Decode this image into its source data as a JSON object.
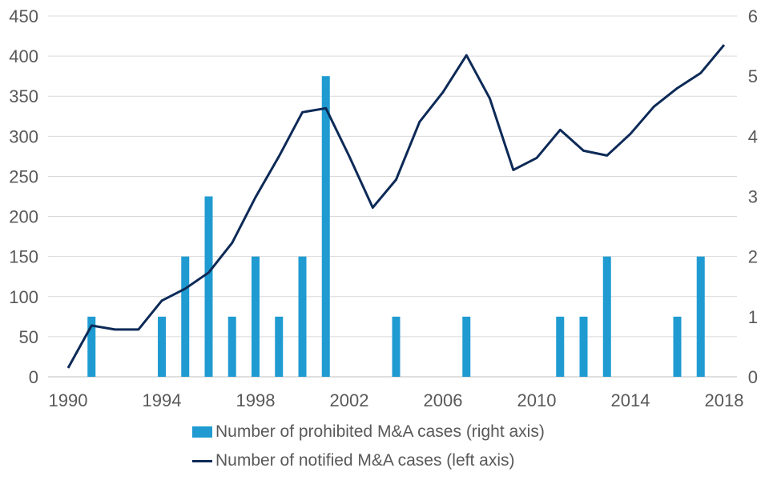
{
  "chart_data": {
    "type": "bar+line",
    "title": "",
    "years": [
      1990,
      1991,
      1992,
      1993,
      1994,
      1995,
      1996,
      1997,
      1998,
      1999,
      2000,
      2001,
      2002,
      2003,
      2004,
      2005,
      2006,
      2007,
      2008,
      2009,
      2010,
      2011,
      2012,
      2013,
      2014,
      2015,
      2016,
      2017,
      2018
    ],
    "x_tick_labels": [
      "1990",
      "1994",
      "1998",
      "2002",
      "2006",
      "2010",
      "2014",
      "2018"
    ],
    "left_axis": {
      "ticks": [
        "0",
        "50",
        "100",
        "150",
        "200",
        "250",
        "300",
        "350",
        "400",
        "450"
      ],
      "ylim": [
        0,
        450
      ]
    },
    "right_axis": {
      "ticks": [
        "0",
        "1",
        "2",
        "3",
        "4",
        "5",
        "6"
      ],
      "ylim": [
        0,
        6
      ]
    },
    "series": [
      {
        "name": "Number of prohibited M&A cases (right axis)",
        "type": "bar",
        "axis": "right",
        "color": "#1f9bd1",
        "values": [
          0,
          1,
          0,
          0,
          1,
          2,
          3,
          1,
          2,
          1,
          2,
          5,
          0,
          0,
          1,
          0,
          0,
          1,
          0,
          0,
          0,
          1,
          1,
          2,
          0,
          0,
          1,
          2,
          0
        ]
      },
      {
        "name": "Number of notified M&A cases (left axis)",
        "type": "line",
        "axis": "left",
        "color": "#0d2a57",
        "values": [
          11,
          64,
          59,
          59,
          95,
          110,
          130,
          167,
          224,
          275,
          330,
          335,
          275,
          211,
          246,
          318,
          355,
          401,
          347,
          258,
          273,
          308,
          282,
          276,
          303,
          337,
          360,
          379,
          414
        ]
      }
    ],
    "legend_position": "bottom-center",
    "grid": true
  }
}
